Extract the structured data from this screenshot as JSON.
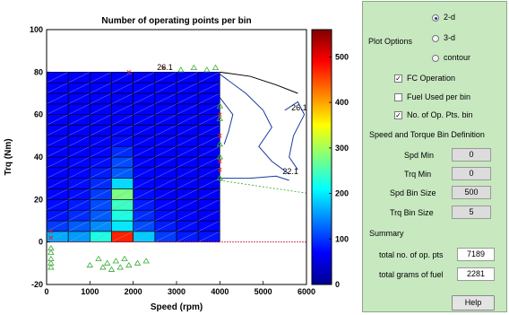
{
  "chart_data": {
    "type": "heatmap",
    "title": "Number of operating points per bin",
    "xlabel": "Speed (rpm)",
    "ylabel": "Trq (Nm)",
    "xlim": [
      0,
      6000
    ],
    "ylim": [
      -20,
      100
    ],
    "x_ticks": [
      "0",
      "1000",
      "2000",
      "3000",
      "4000",
      "5000",
      "6000"
    ],
    "y_ticks": [
      "-20",
      "0",
      "20",
      "40",
      "60",
      "80",
      "100"
    ],
    "colorbar_ticks": [
      "0",
      "100",
      "200",
      "300",
      "400",
      "500"
    ],
    "colorbar_range": [
      0,
      560
    ],
    "bin_x_edges_rpm": [
      0,
      500,
      1000,
      1500,
      2000,
      2500,
      3000,
      3500,
      4000
    ],
    "bin_y_edges_nm": [
      0,
      5,
      10,
      15,
      20,
      25,
      30,
      35,
      40,
      45,
      50,
      55,
      60,
      65,
      70,
      75,
      80
    ],
    "bin_counts_rows_bottom_to_top": [
      [
        110,
        100,
        180,
        460,
        130,
        40,
        20,
        15
      ],
      [
        40,
        60,
        90,
        150,
        50,
        20,
        10,
        5
      ],
      [
        15,
        30,
        60,
        180,
        30,
        10,
        5,
        0
      ],
      [
        10,
        20,
        50,
        200,
        20,
        5,
        0,
        0
      ],
      [
        5,
        10,
        40,
        240,
        10,
        0,
        0,
        0
      ],
      [
        0,
        10,
        30,
        140,
        5,
        0,
        0,
        0
      ],
      [
        0,
        5,
        20,
        60,
        5,
        0,
        0,
        0
      ],
      [
        0,
        5,
        10,
        50,
        0,
        0,
        0,
        0
      ],
      [
        0,
        0,
        5,
        30,
        0,
        0,
        0,
        0
      ],
      [
        0,
        0,
        0,
        10,
        0,
        0,
        0,
        0
      ],
      [
        0,
        0,
        0,
        5,
        0,
        0,
        0,
        0
      ],
      [
        0,
        0,
        0,
        0,
        0,
        0,
        0,
        0
      ],
      [
        0,
        0,
        0,
        0,
        0,
        0,
        0,
        0
      ],
      [
        0,
        0,
        0,
        0,
        0,
        0,
        0,
        0
      ],
      [
        0,
        0,
        0,
        0,
        0,
        0,
        0,
        0
      ],
      [
        0,
        0,
        0,
        0,
        0,
        0,
        0,
        0
      ]
    ],
    "annotations": [
      "26.1",
      "26.1",
      "22.1"
    ],
    "grid": false,
    "colormap": "jet"
  },
  "panel": {
    "plot_options_label": "Plot Options",
    "radio_options": [
      {
        "label": "2-d",
        "selected": true
      },
      {
        "label": "3-d",
        "selected": false
      },
      {
        "label": "contour",
        "selected": false
      }
    ],
    "checkboxes": [
      {
        "label": "FC Operation",
        "checked": true
      },
      {
        "label": "Fuel Used per bin",
        "checked": false
      },
      {
        "label": "No. of Op. Pts. bin",
        "checked": true
      }
    ],
    "bin_def_title": "Speed and Torque Bin Definition",
    "spd_min_label": "Spd Min",
    "spd_min_value": "0",
    "trq_min_label": "Trq Min",
    "trq_min_value": "0",
    "spd_bin_label": "Spd Bin Size",
    "spd_bin_value": "500",
    "trq_bin_label": "Trq Bin Size",
    "trq_bin_value": "5",
    "summary_title": "Summary",
    "total_pts_label": "total no. of op. pts",
    "total_pts_value": "7189",
    "total_fuel_label": "total grams of fuel",
    "total_fuel_value": "2281",
    "help_label": "Help",
    "check_mark": "✓"
  }
}
